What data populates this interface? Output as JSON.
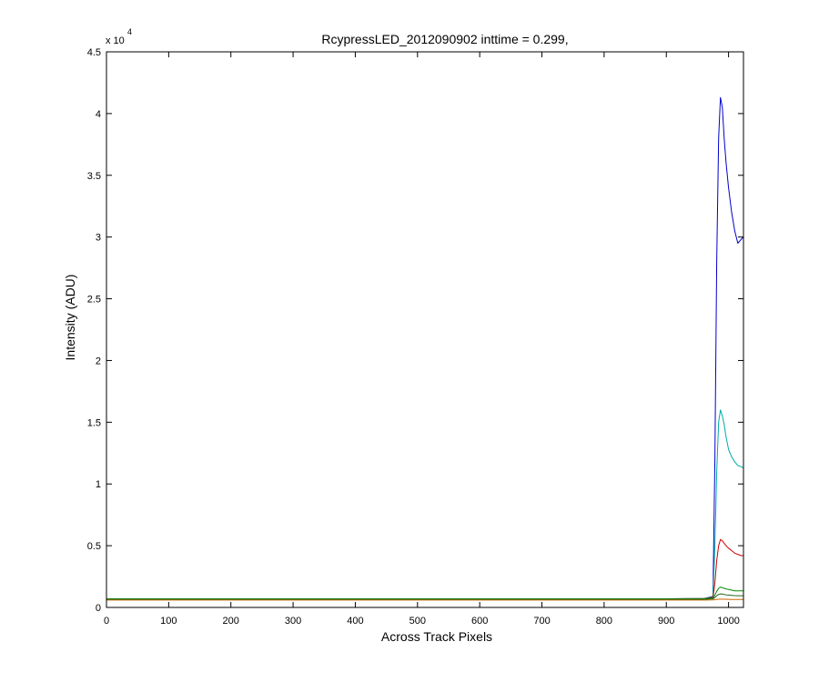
{
  "chart_data": {
    "type": "line",
    "title": "RcypressLED_2012090902 inttime = 0.299,",
    "xlabel": "Across Track Pixels",
    "ylabel": "Intensity (ADU)",
    "y_exponent_label": "x 10",
    "y_exponent_power": "4",
    "xlim": [
      0,
      1024
    ],
    "ylim": [
      0,
      45000
    ],
    "y_scale_factor": 10000,
    "xticks": [
      0,
      100,
      200,
      300,
      400,
      500,
      600,
      700,
      800,
      900,
      1000
    ],
    "yticks": [
      0,
      5000,
      10000,
      15000,
      20000,
      25000,
      30000,
      35000,
      40000,
      45000
    ],
    "ytick_labels": [
      "0",
      "0.5",
      "1",
      "1.5",
      "2",
      "2.5",
      "3",
      "3.5",
      "4",
      "4.5"
    ],
    "grid": false,
    "legend": "none",
    "series": [
      {
        "color": "#0000cc",
        "x": [
          0,
          100,
          200,
          300,
          400,
          500,
          600,
          700,
          800,
          900,
          960,
          975,
          978,
          981,
          984,
          987,
          990,
          993,
          996,
          1000,
          1005,
          1010,
          1015,
          1020,
          1024
        ],
        "y": [
          700,
          700,
          700,
          700,
          700,
          700,
          700,
          700,
          700,
          700,
          710,
          900,
          12000,
          28000,
          38000,
          41300,
          40500,
          38000,
          36000,
          34000,
          32000,
          30500,
          29500,
          29800,
          30000
        ]
      },
      {
        "color": "#00aaaa",
        "x": [
          0,
          100,
          200,
          300,
          400,
          500,
          600,
          700,
          800,
          900,
          960,
          975,
          978,
          981,
          984,
          987,
          990,
          993,
          996,
          1000,
          1005,
          1010,
          1015,
          1020,
          1024
        ],
        "y": [
          700,
          700,
          700,
          700,
          700,
          700,
          700,
          700,
          700,
          700,
          710,
          850,
          5000,
          11000,
          15000,
          16000,
          15500,
          14800,
          13800,
          12800,
          12200,
          11800,
          11500,
          11400,
          11300
        ]
      },
      {
        "color": "#cc0000",
        "x": [
          0,
          100,
          200,
          300,
          400,
          500,
          600,
          700,
          800,
          900,
          960,
          975,
          978,
          981,
          984,
          987,
          990,
          993,
          996,
          1000,
          1005,
          1010,
          1015,
          1020,
          1024
        ],
        "y": [
          700,
          700,
          700,
          700,
          700,
          700,
          700,
          700,
          700,
          700,
          710,
          800,
          2000,
          3800,
          5000,
          5500,
          5400,
          5200,
          5000,
          4800,
          4600,
          4400,
          4300,
          4200,
          4200
        ]
      },
      {
        "color": "#008800",
        "x": [
          0,
          100,
          200,
          300,
          400,
          500,
          600,
          700,
          800,
          900,
          960,
          975,
          978,
          981,
          984,
          987,
          990,
          993,
          996,
          1000,
          1005,
          1010,
          1015,
          1020,
          1024
        ],
        "y": [
          700,
          700,
          700,
          700,
          700,
          700,
          700,
          700,
          700,
          700,
          705,
          750,
          1000,
          1300,
          1550,
          1650,
          1600,
          1550,
          1500,
          1450,
          1400,
          1350,
          1350,
          1350,
          1350
        ]
      },
      {
        "color": "#226622",
        "x": [
          0,
          100,
          200,
          300,
          400,
          500,
          600,
          700,
          800,
          900,
          960,
          975,
          978,
          981,
          984,
          987,
          990,
          993,
          996,
          1000,
          1005,
          1010,
          1015,
          1020,
          1024
        ],
        "y": [
          650,
          650,
          650,
          650,
          650,
          650,
          650,
          650,
          650,
          650,
          655,
          690,
          800,
          950,
          1050,
          1100,
          1080,
          1050,
          1020,
          1000,
          980,
          960,
          950,
          950,
          950
        ]
      },
      {
        "color": "#cc6600",
        "x": [
          0,
          100,
          200,
          300,
          400,
          500,
          600,
          700,
          800,
          900,
          960,
          975,
          978,
          981,
          984,
          987,
          990,
          993,
          996,
          1000,
          1005,
          1010,
          1015,
          1020,
          1024
        ],
        "y": [
          600,
          600,
          600,
          600,
          600,
          600,
          600,
          600,
          600,
          600,
          600,
          610,
          630,
          650,
          660,
          670,
          670,
          665,
          660,
          655,
          650,
          650,
          650,
          650,
          650
        ]
      }
    ]
  }
}
